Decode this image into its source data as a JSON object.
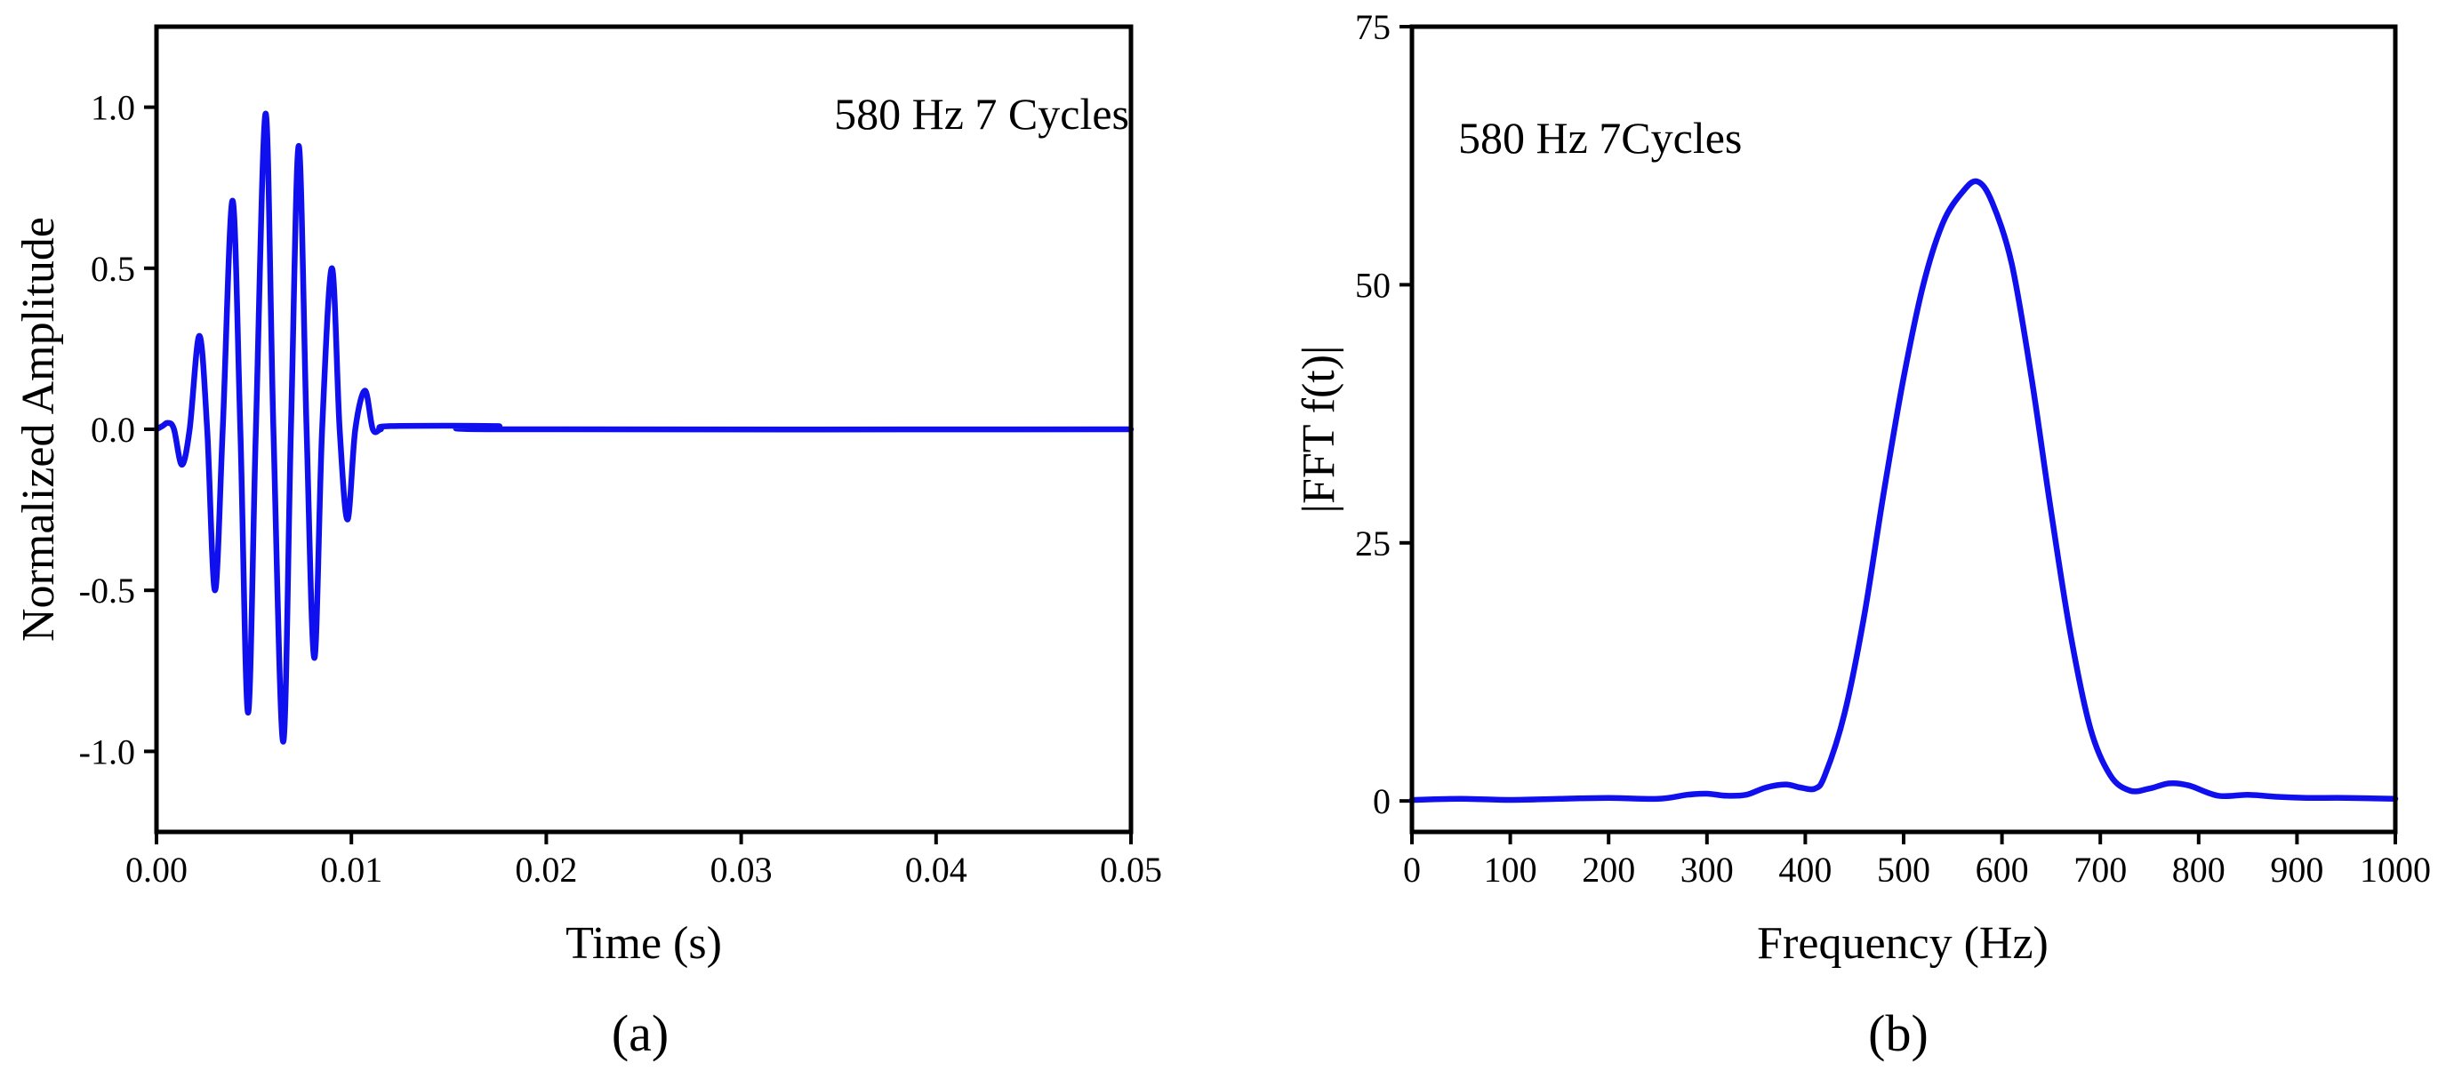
{
  "chart_data": [
    {
      "type": "line",
      "caption": "(a)",
      "annotation": "580 Hz 7 Cycles",
      "xlabel": "Time (s)",
      "ylabel": "Normalized Amplitude",
      "xlim": [
        0,
        0.05
      ],
      "ylim": [
        -1.25,
        1.25
      ],
      "xticks": [
        0,
        0.01,
        0.02,
        0.03,
        0.04,
        0.05
      ],
      "xtick_labels": [
        "0.00",
        "0.01",
        "0.02",
        "0.03",
        "0.04",
        "0.05"
      ],
      "yticks": [
        1.0,
        0.5,
        0.0,
        -0.5,
        -1.0
      ],
      "ytick_labels": [
        "1.0",
        "0.5",
        "0.0",
        "-0.5",
        "-1.0"
      ],
      "series": [
        {
          "name": "580 Hz 7 Cycles",
          "color": "#1010ee",
          "x": [
            0,
            0.0003,
            0.0006,
            0.0009,
            0.0013,
            0.0017,
            0.0022,
            0.0026,
            0.003,
            0.0034,
            0.0039,
            0.0043,
            0.0047,
            0.0051,
            0.0056,
            0.006,
            0.0065,
            0.0069,
            0.0073,
            0.0077,
            0.0081,
            0.0085,
            0.009,
            0.0094,
            0.0098,
            0.0102,
            0.0107,
            0.0111,
            0.0115,
            0.012,
            0.0175,
            0.0176,
            0.05
          ],
          "y": [
            0.0,
            0.01,
            0.02,
            0.0,
            -0.11,
            0.0,
            0.29,
            0.0,
            -0.5,
            0.0,
            0.71,
            0.0,
            -0.88,
            0.0,
            0.98,
            0.0,
            -0.97,
            0.0,
            0.88,
            0.0,
            -0.71,
            0.0,
            0.5,
            0.0,
            -0.28,
            0.0,
            0.12,
            0.0,
            0.0,
            0.01,
            0.01,
            0.0,
            0.0
          ]
        }
      ]
    },
    {
      "type": "line",
      "caption": "(b)",
      "annotation": "580 Hz 7Cycles",
      "xlabel": "Frequency (Hz)",
      "ylabel": "|FFT f(t)|",
      "xlim": [
        0,
        1000
      ],
      "ylim": [
        -3,
        75
      ],
      "xticks": [
        0,
        100,
        200,
        300,
        400,
        500,
        600,
        700,
        800,
        900,
        1000
      ],
      "xtick_labels": [
        "0",
        "100",
        "200",
        "300",
        "400",
        "500",
        "600",
        "700",
        "800",
        "900",
        "1000"
      ],
      "yticks": [
        75,
        50,
        25,
        0
      ],
      "ytick_labels": [
        "75",
        "50",
        "25",
        "0"
      ],
      "series": [
        {
          "name": "580 Hz 7Cycles",
          "color": "#1010ee",
          "x": [
            0,
            50,
            100,
            150,
            200,
            250,
            280,
            300,
            320,
            340,
            360,
            380,
            395,
            410,
            420,
            440,
            460,
            480,
            500,
            520,
            540,
            560,
            575,
            590,
            610,
            630,
            650,
            670,
            690,
            710,
            730,
            750,
            770,
            790,
            820,
            850,
            880,
            910,
            950,
            1000
          ],
          "y": [
            0.1,
            0.2,
            0.1,
            0.2,
            0.3,
            0.2,
            0.6,
            0.7,
            0.5,
            0.6,
            1.3,
            1.6,
            1.3,
            1.2,
            2.5,
            8.5,
            18,
            30,
            41,
            50,
            56,
            59,
            60,
            58,
            52,
            41,
            28,
            16,
            7,
            2.5,
            1.0,
            1.2,
            1.7,
            1.5,
            0.5,
            0.6,
            0.4,
            0.3,
            0.3,
            0.2
          ]
        }
      ]
    }
  ]
}
